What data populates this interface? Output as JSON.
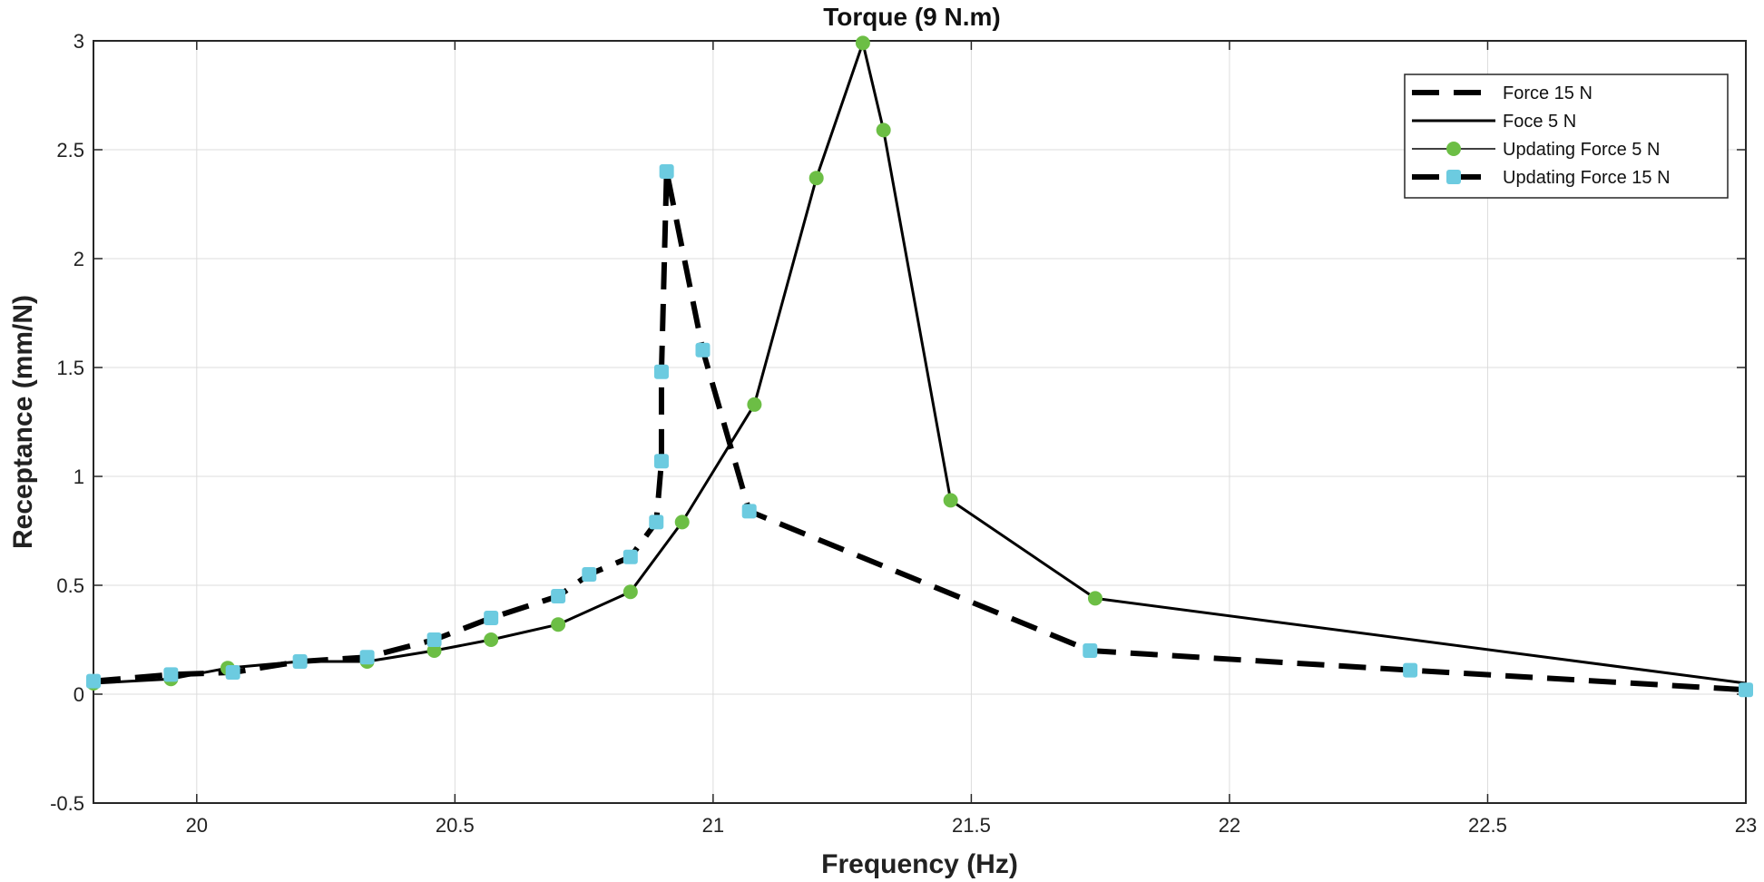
{
  "chart_data": {
    "type": "line",
    "title": "Torque (9 N.m)",
    "xlabel": "Frequency (Hz)",
    "ylabel": "Receptance (mm/N)",
    "xlim": [
      19.8,
      23.0
    ],
    "ylim": [
      -0.5,
      3.0
    ],
    "xticks": [
      20,
      20.5,
      21,
      21.5,
      22,
      22.5,
      23
    ],
    "xtick_labels": [
      "20",
      "20.5",
      "21",
      "21.5",
      "22",
      "22.5",
      "23"
    ],
    "yticks": [
      -0.5,
      0,
      0.5,
      1,
      1.5,
      2,
      2.5,
      3
    ],
    "ytick_labels": [
      "-0.5",
      "0",
      "0.5",
      "1",
      "1.5",
      "2",
      "2.5",
      "3"
    ],
    "grid": true,
    "legend_position": "top-right",
    "series": [
      {
        "name": "Force 15 N",
        "style": "dashed",
        "color": "#000000",
        "x": [
          19.8,
          19.95,
          20.07,
          20.2,
          20.33,
          20.46,
          20.57,
          20.7,
          20.76,
          20.84,
          20.89,
          20.9,
          20.9,
          20.91,
          20.98,
          21.07,
          21.73,
          22.35,
          23.0
        ],
        "y": [
          0.06,
          0.09,
          0.1,
          0.15,
          0.17,
          0.25,
          0.35,
          0.45,
          0.55,
          0.63,
          0.79,
          1.07,
          1.48,
          2.4,
          1.58,
          0.84,
          0.2,
          0.11,
          0.02
        ]
      },
      {
        "name": "Foce 5 N",
        "style": "solid",
        "color": "#000000",
        "x": [
          19.8,
          19.95,
          20.06,
          20.2,
          20.33,
          20.46,
          20.57,
          20.7,
          20.84,
          20.94,
          21.08,
          21.2,
          21.29,
          21.33,
          21.46,
          21.74,
          23.0
        ],
        "y": [
          0.05,
          0.07,
          0.12,
          0.15,
          0.15,
          0.2,
          0.25,
          0.32,
          0.47,
          0.79,
          1.33,
          2.37,
          2.99,
          2.59,
          0.89,
          0.44,
          0.05
        ]
      },
      {
        "name": "Updating Force 5 N",
        "style": "markers",
        "marker": "circle",
        "color": "#6cbe45",
        "x": [
          19.8,
          19.95,
          20.06,
          20.2,
          20.33,
          20.46,
          20.57,
          20.7,
          20.84,
          20.94,
          21.08,
          21.2,
          21.29,
          21.33,
          21.46,
          21.74
        ],
        "y": [
          0.05,
          0.07,
          0.12,
          0.15,
          0.15,
          0.2,
          0.25,
          0.32,
          0.47,
          0.79,
          1.33,
          2.37,
          2.99,
          2.59,
          0.89,
          0.44
        ]
      },
      {
        "name": "Updating Force 15 N",
        "style": "markers",
        "marker": "square",
        "color": "#6ccbe0",
        "x": [
          19.8,
          19.95,
          20.07,
          20.2,
          20.33,
          20.46,
          20.57,
          20.7,
          20.76,
          20.84,
          20.89,
          20.9,
          20.9,
          20.91,
          20.98,
          21.07,
          21.73,
          22.35,
          23.0
        ],
        "y": [
          0.06,
          0.09,
          0.1,
          0.15,
          0.17,
          0.25,
          0.35,
          0.45,
          0.55,
          0.63,
          0.79,
          1.07,
          1.48,
          2.4,
          1.58,
          0.84,
          0.2,
          0.11,
          0.02
        ]
      }
    ]
  }
}
